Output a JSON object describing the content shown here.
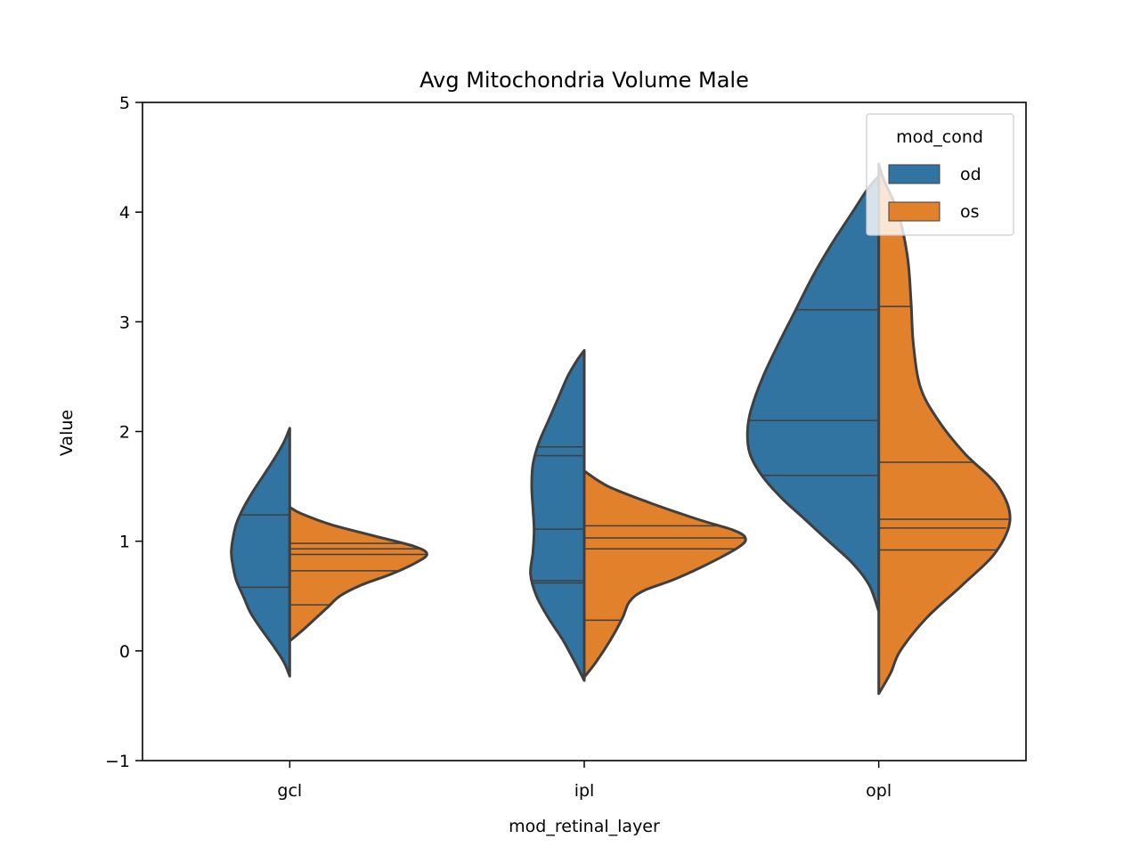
{
  "chart_data": {
    "type": "violin",
    "title": "Avg Mitochondria Volume Male",
    "xlabel": "mod_retinal_layer",
    "ylabel": "Value",
    "ylim": [
      -1,
      5
    ],
    "y_ticks": [
      -1,
      0,
      1,
      2,
      3,
      4,
      5
    ],
    "y_tick_labels": [
      "−1",
      "0",
      "1",
      "2",
      "3",
      "4",
      "5"
    ],
    "categories": [
      "gcl",
      "ipl",
      "opl"
    ],
    "split": true,
    "inner": "quartile",
    "legend": {
      "title": "mod_cond",
      "position": "top-right",
      "entries": [
        {
          "label": "od",
          "color": "#3274a1"
        },
        {
          "label": "os",
          "color": "#e1812c"
        }
      ]
    },
    "series": [
      {
        "name": "od",
        "color": "#3274a1",
        "violins": [
          {
            "category": "gcl",
            "range": [
              -0.23,
              2.03
            ],
            "quartile_lines": [
              0.58,
              1.24
            ],
            "profile": [
              [
                -0.23,
                0.0
              ],
              [
                -0.1,
                0.05
              ],
              [
                0.05,
                0.14
              ],
              [
                0.2,
                0.24
              ],
              [
                0.35,
                0.33
              ],
              [
                0.5,
                0.39
              ],
              [
                0.65,
                0.45
              ],
              [
                0.8,
                0.48
              ],
              [
                0.9,
                0.49
              ],
              [
                1.0,
                0.48
              ],
              [
                1.15,
                0.45
              ],
              [
                1.3,
                0.39
              ],
              [
                1.45,
                0.31
              ],
              [
                1.6,
                0.22
              ],
              [
                1.75,
                0.13
              ],
              [
                1.9,
                0.05
              ],
              [
                2.03,
                0.0
              ]
            ]
          },
          {
            "category": "ipl",
            "range": [
              -0.27,
              2.74
            ],
            "quartile_lines": [
              0.62,
              0.64,
              1.11,
              1.78,
              1.86
            ],
            "profile": [
              [
                -0.27,
                0.0
              ],
              [
                -0.1,
                0.08
              ],
              [
                0.1,
                0.18
              ],
              [
                0.3,
                0.3
              ],
              [
                0.5,
                0.4
              ],
              [
                0.7,
                0.45
              ],
              [
                0.9,
                0.43
              ],
              [
                1.1,
                0.42
              ],
              [
                1.3,
                0.43
              ],
              [
                1.5,
                0.44
              ],
              [
                1.7,
                0.43
              ],
              [
                1.9,
                0.38
              ],
              [
                2.1,
                0.3
              ],
              [
                2.3,
                0.22
              ],
              [
                2.5,
                0.14
              ],
              [
                2.65,
                0.06
              ],
              [
                2.74,
                0.0
              ]
            ]
          },
          {
            "category": "opl",
            "range": [
              0.36,
              4.33
            ],
            "quartile_lines": [
              1.6,
              2.1,
              3.11
            ],
            "profile": [
              [
                0.36,
                0.0
              ],
              [
                0.6,
                0.08
              ],
              [
                0.8,
                0.22
              ],
              [
                1.0,
                0.42
              ],
              [
                1.2,
                0.62
              ],
              [
                1.4,
                0.82
              ],
              [
                1.6,
                0.98
              ],
              [
                1.8,
                1.08
              ],
              [
                2.0,
                1.1
              ],
              [
                2.2,
                1.07
              ],
              [
                2.5,
                0.97
              ],
              [
                2.8,
                0.84
              ],
              [
                3.1,
                0.7
              ],
              [
                3.4,
                0.56
              ],
              [
                3.7,
                0.4
              ],
              [
                4.0,
                0.22
              ],
              [
                4.2,
                0.1
              ],
              [
                4.33,
                0.0
              ]
            ]
          }
        ]
      },
      {
        "name": "os",
        "color": "#e1812c",
        "violins": [
          {
            "category": "gcl",
            "range": [
              0.09,
              1.31
            ],
            "quartile_lines": [
              0.42,
              0.73,
              0.88,
              0.93,
              0.98
            ],
            "profile": [
              [
                0.09,
                0.0
              ],
              [
                0.2,
                0.12
              ],
              [
                0.3,
                0.22
              ],
              [
                0.4,
                0.32
              ],
              [
                0.5,
                0.42
              ],
              [
                0.6,
                0.6
              ],
              [
                0.7,
                0.85
              ],
              [
                0.8,
                1.05
              ],
              [
                0.88,
                1.15
              ],
              [
                0.95,
                1.05
              ],
              [
                1.05,
                0.7
              ],
              [
                1.15,
                0.35
              ],
              [
                1.25,
                0.1
              ],
              [
                1.31,
                0.0
              ]
            ]
          },
          {
            "category": "ipl",
            "range": [
              -0.24,
              1.64
            ],
            "quartile_lines": [
              0.28,
              0.93,
              1.03,
              1.14
            ],
            "profile": [
              [
                -0.24,
                0.0
              ],
              [
                -0.1,
                0.1
              ],
              [
                0.1,
                0.22
              ],
              [
                0.3,
                0.32
              ],
              [
                0.45,
                0.38
              ],
              [
                0.55,
                0.5
              ],
              [
                0.65,
                0.75
              ],
              [
                0.8,
                1.05
              ],
              [
                0.95,
                1.3
              ],
              [
                1.03,
                1.35
              ],
              [
                1.1,
                1.25
              ],
              [
                1.2,
                0.95
              ],
              [
                1.35,
                0.55
              ],
              [
                1.5,
                0.2
              ],
              [
                1.64,
                0.0
              ]
            ]
          },
          {
            "category": "opl",
            "range": [
              -0.39,
              4.44
            ],
            "quartile_lines": [
              0.92,
              1.12,
              1.2,
              1.72,
              3.14
            ],
            "profile": [
              [
                -0.39,
                0.0
              ],
              [
                -0.2,
                0.1
              ],
              [
                0.0,
                0.18
              ],
              [
                0.3,
                0.4
              ],
              [
                0.6,
                0.7
              ],
              [
                0.9,
                0.98
              ],
              [
                1.2,
                1.1
              ],
              [
                1.5,
                1.0
              ],
              [
                1.8,
                0.72
              ],
              [
                2.1,
                0.5
              ],
              [
                2.4,
                0.35
              ],
              [
                2.8,
                0.29
              ],
              [
                3.2,
                0.27
              ],
              [
                3.6,
                0.24
              ],
              [
                4.0,
                0.16
              ],
              [
                4.3,
                0.04
              ],
              [
                4.44,
                0.0
              ]
            ]
          }
        ]
      }
    ]
  }
}
